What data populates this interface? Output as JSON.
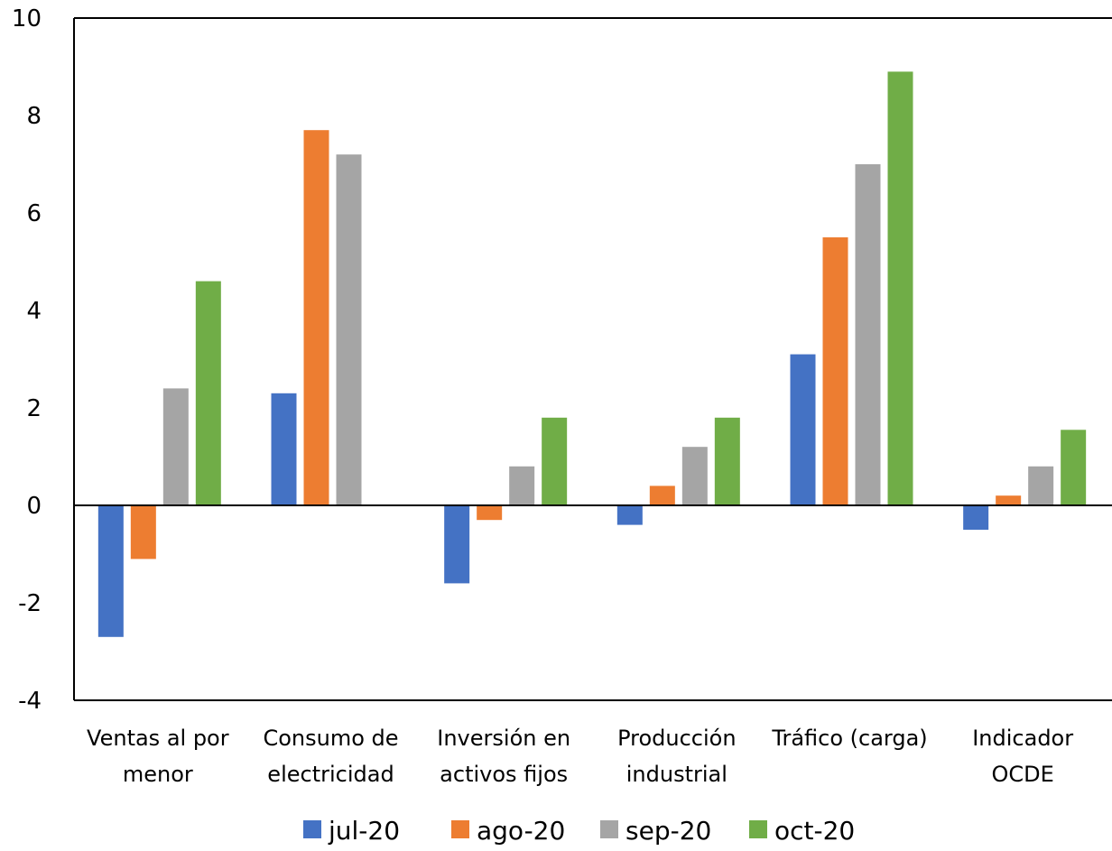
{
  "chart_data": {
    "type": "bar",
    "categories": [
      [
        "Ventas al por",
        "menor"
      ],
      [
        "Consumo de",
        "electricidad"
      ],
      [
        "Inversión en",
        "activos fijos"
      ],
      [
        "Producción",
        "industrial"
      ],
      [
        "Tráfico (carga)"
      ],
      [
        "Indicador",
        "OCDE"
      ]
    ],
    "series": [
      {
        "name": "jul-20",
        "color": "#4472C4",
        "values": [
          -2.7,
          2.3,
          -1.6,
          -0.4,
          3.1,
          -0.5
        ]
      },
      {
        "name": "ago-20",
        "color": "#ED7D31",
        "values": [
          -1.1,
          7.7,
          -0.3,
          0.4,
          5.5,
          0.2
        ]
      },
      {
        "name": "sep-20",
        "color": "#A5A5A5",
        "values": [
          2.4,
          7.2,
          0.8,
          1.2,
          7.0,
          0.8
        ]
      },
      {
        "name": "oct-20",
        "color": "#70AD47",
        "values": [
          4.6,
          null,
          1.8,
          1.8,
          8.9,
          1.55
        ]
      }
    ],
    "ylim": [
      -4,
      10
    ],
    "yticks": [
      "10",
      "8",
      "6",
      "4",
      "2",
      "0",
      "-2",
      "-4"
    ],
    "ytick_values": [
      10,
      8,
      6,
      4,
      2,
      0,
      -2,
      -4
    ],
    "legend_position": "bottom",
    "grid": false
  }
}
